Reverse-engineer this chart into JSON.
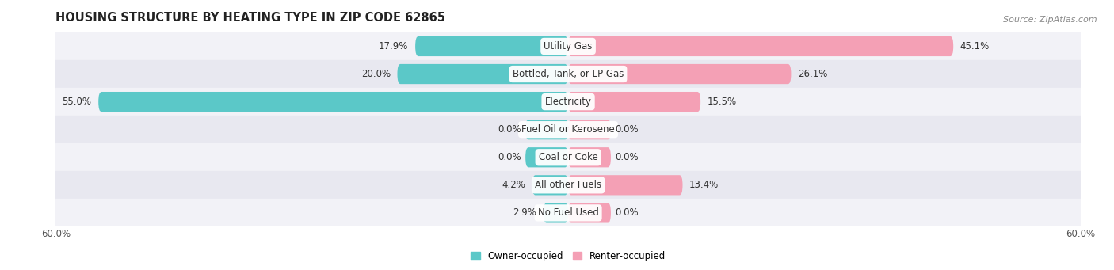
{
  "title": "HOUSING STRUCTURE BY HEATING TYPE IN ZIP CODE 62865",
  "source": "Source: ZipAtlas.com",
  "categories": [
    "Utility Gas",
    "Bottled, Tank, or LP Gas",
    "Electricity",
    "Fuel Oil or Kerosene",
    "Coal or Coke",
    "All other Fuels",
    "No Fuel Used"
  ],
  "owner_values": [
    17.9,
    20.0,
    55.0,
    0.0,
    0.0,
    4.2,
    2.9
  ],
  "renter_values": [
    45.1,
    26.1,
    15.5,
    0.0,
    0.0,
    13.4,
    0.0
  ],
  "owner_color": "#5BC8C8",
  "renter_color": "#F4A0B5",
  "axis_limit": 60.0,
  "owner_label": "Owner-occupied",
  "renter_label": "Renter-occupied",
  "title_fontsize": 10.5,
  "source_fontsize": 8,
  "label_fontsize": 8.5,
  "value_fontsize": 8.5,
  "bar_height": 0.72,
  "background_color": "#FFFFFF",
  "row_bg_color_odd": "#F2F2F7",
  "row_bg_color_even": "#E8E8F0",
  "zero_bar_width": 5.0
}
